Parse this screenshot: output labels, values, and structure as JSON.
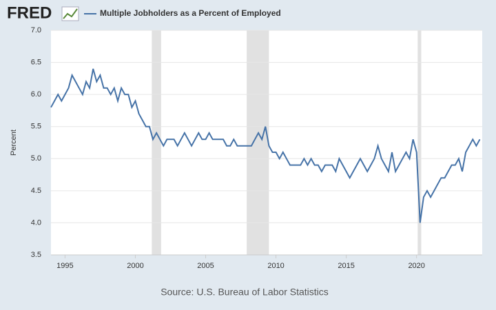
{
  "header": {
    "logo": "FRED"
  },
  "chart_data": {
    "type": "line",
    "series": [
      {
        "name": "Multiple Jobholders as a Percent of Employed",
        "color": "#4572a7",
        "x": [
          1994,
          1994.25,
          1994.5,
          1994.75,
          1995,
          1995.25,
          1995.5,
          1995.75,
          1996,
          1996.25,
          1996.5,
          1996.75,
          1997,
          1997.25,
          1997.5,
          1997.75,
          1998,
          1998.25,
          1998.5,
          1998.75,
          1999,
          1999.25,
          1999.5,
          1999.75,
          2000,
          2000.25,
          2000.5,
          2000.75,
          2001,
          2001.25,
          2001.5,
          2001.75,
          2002,
          2002.25,
          2002.5,
          2002.75,
          2003,
          2003.25,
          2003.5,
          2003.75,
          2004,
          2004.25,
          2004.5,
          2004.75,
          2005,
          2005.25,
          2005.5,
          2005.75,
          2006,
          2006.25,
          2006.5,
          2006.75,
          2007,
          2007.25,
          2007.5,
          2007.75,
          2008,
          2008.25,
          2008.5,
          2008.75,
          2009,
          2009.25,
          2009.5,
          2009.75,
          2010,
          2010.25,
          2010.5,
          2010.75,
          2011,
          2011.25,
          2011.5,
          2011.75,
          2012,
          2012.25,
          2012.5,
          2012.75,
          2013,
          2013.25,
          2013.5,
          2013.75,
          2014,
          2014.25,
          2014.5,
          2014.75,
          2015,
          2015.25,
          2015.5,
          2015.75,
          2016,
          2016.25,
          2016.5,
          2016.75,
          2017,
          2017.25,
          2017.5,
          2017.75,
          2018,
          2018.25,
          2018.5,
          2018.75,
          2019,
          2019.25,
          2019.5,
          2019.75,
          2020,
          2020.25,
          2020.5,
          2020.75,
          2021,
          2021.25,
          2021.5,
          2021.75,
          2022,
          2022.25,
          2022.5,
          2022.75,
          2023,
          2023.25,
          2023.5,
          2023.75,
          2024,
          2024.25,
          2024.5
        ],
        "values": [
          5.8,
          5.9,
          6.0,
          5.9,
          6.0,
          6.1,
          6.3,
          6.2,
          6.1,
          6.0,
          6.2,
          6.1,
          6.4,
          6.2,
          6.3,
          6.1,
          6.1,
          6.0,
          6.1,
          5.9,
          6.1,
          6.0,
          6.0,
          5.8,
          5.9,
          5.7,
          5.6,
          5.5,
          5.5,
          5.3,
          5.4,
          5.3,
          5.2,
          5.3,
          5.3,
          5.3,
          5.2,
          5.3,
          5.4,
          5.3,
          5.2,
          5.3,
          5.4,
          5.3,
          5.3,
          5.4,
          5.3,
          5.3,
          5.3,
          5.3,
          5.2,
          5.2,
          5.3,
          5.2,
          5.2,
          5.2,
          5.2,
          5.2,
          5.3,
          5.4,
          5.3,
          5.5,
          5.2,
          5.1,
          5.1,
          5.0,
          5.1,
          5.0,
          4.9,
          4.9,
          4.9,
          4.9,
          5.0,
          4.9,
          5.0,
          4.9,
          4.9,
          4.8,
          4.9,
          4.9,
          4.9,
          4.8,
          5.0,
          4.9,
          4.8,
          4.7,
          4.8,
          4.9,
          5.0,
          4.9,
          4.8,
          4.9,
          5.0,
          5.2,
          5.0,
          4.9,
          4.8,
          5.1,
          4.8,
          4.9,
          5.0,
          5.1,
          5.0,
          5.3,
          5.1,
          4.0,
          4.4,
          4.5,
          4.4,
          4.5,
          4.6,
          4.7,
          4.7,
          4.8,
          4.9,
          4.9,
          5.0,
          4.8,
          5.1,
          5.2,
          5.3,
          5.2,
          5.3
        ]
      }
    ],
    "recessions": [
      [
        2001.17,
        2001.83
      ],
      [
        2007.92,
        2009.5
      ],
      [
        2020.08,
        2020.33
      ]
    ],
    "xlim": [
      1994,
      2024.67
    ],
    "xticks": [
      1995,
      2000,
      2005,
      2010,
      2015,
      2020
    ],
    "ylim": [
      3.5,
      7.0
    ],
    "yticks": [
      3.5,
      {
        "value": 4.0,
        "label": "4.0"
      },
      4.5,
      {
        "value": 5.0,
        "label": "5.0"
      },
      5.5,
      {
        "value": 6.0,
        "label": "6.0"
      },
      6.5,
      {
        "value": 7.0,
        "label": "7.0"
      }
    ],
    "ylabel": "Percent",
    "grid": true,
    "source": "Source: U.S. Bureau of Labor Statistics"
  }
}
